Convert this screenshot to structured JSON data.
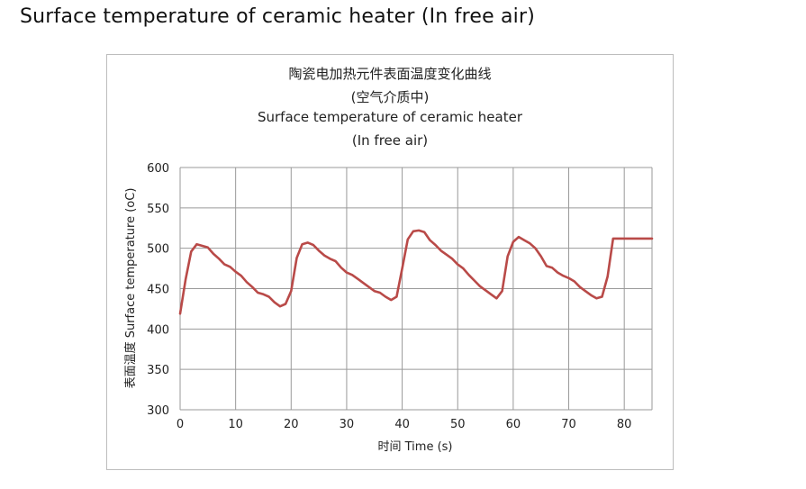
{
  "page": {
    "heading": "Surface temperature of ceramic heater (In free air)"
  },
  "chart_data": {
    "type": "line",
    "title_lines": [
      "陶瓷电加热元件表面温度变化曲线",
      "(空气介质中)",
      "Surface temperature of ceramic heater",
      "(In free air)"
    ],
    "xlabel": "时间 Time (s)",
    "ylabel": "表面温度 Surface temperature (oC)",
    "xlim": [
      0,
      85
    ],
    "ylim": [
      300,
      600
    ],
    "xticks": [
      0,
      10,
      20,
      30,
      40,
      50,
      60,
      70,
      80
    ],
    "xtick_labels": [
      "0",
      "10",
      "20",
      "30",
      "40",
      "50",
      "60",
      "70",
      "80"
    ],
    "yticks": [
      300,
      350,
      400,
      450,
      500,
      550,
      600
    ],
    "ytick_labels": [
      "300",
      "350",
      "400",
      "450",
      "500",
      "550",
      "600"
    ],
    "grid": true,
    "line_color": "#b94a48",
    "series": [
      {
        "x": [
          0,
          1,
          2,
          3,
          4,
          5,
          6,
          7,
          8,
          9,
          10,
          11,
          12,
          13,
          14,
          15,
          16,
          17,
          18,
          19,
          20,
          21,
          22,
          23,
          24,
          25,
          26,
          27,
          28,
          29,
          30,
          31,
          32,
          33,
          34,
          35,
          36,
          37,
          38,
          39,
          40,
          41,
          42,
          43,
          44,
          45,
          46,
          47,
          48,
          49,
          50,
          51,
          52,
          53,
          54,
          55,
          56,
          57,
          58,
          59,
          60,
          61,
          62,
          63,
          64,
          65,
          66,
          67,
          68,
          69,
          70,
          71,
          72,
          73,
          74,
          75,
          76,
          77,
          78,
          79,
          80,
          81,
          82,
          83,
          84,
          85
        ],
        "y": [
          419,
          462,
          496,
          505,
          503,
          501,
          493,
          487,
          480,
          477,
          471,
          466,
          458,
          452,
          445,
          443,
          440,
          433,
          428,
          431,
          447,
          488,
          505,
          507,
          504,
          497,
          491,
          487,
          484,
          476,
          470,
          467,
          462,
          457,
          452,
          447,
          445,
          440,
          436,
          440,
          475,
          511,
          521,
          522,
          520,
          510,
          504,
          497,
          492,
          487,
          480,
          475,
          467,
          460,
          453,
          448,
          443,
          438,
          447,
          490,
          508,
          514,
          510,
          506,
          500,
          490,
          478,
          476,
          470,
          466,
          463,
          459,
          452,
          447,
          442,
          438,
          440,
          465,
          512,
          512,
          512,
          512,
          512,
          512,
          512,
          512
        ]
      }
    ]
  }
}
